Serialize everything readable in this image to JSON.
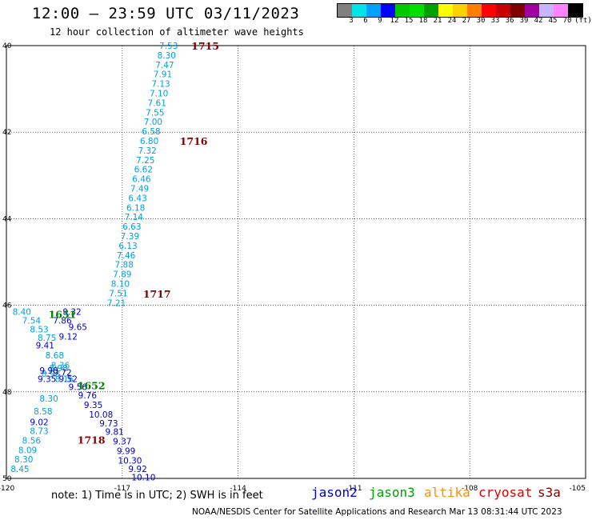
{
  "header": {
    "title": "12:00 – 23:59 UTC 03/11/2023",
    "subtitle": "12 hour collection of altimeter wave heights"
  },
  "color_scale": {
    "labels": [
      "3",
      "6",
      "9",
      "12",
      "15",
      "18",
      "21",
      "24",
      "27",
      "30",
      "33",
      "36",
      "39",
      "42",
      "45",
      "70"
    ],
    "unit": "(ft)",
    "colors": [
      "#808080",
      "#00e5e5",
      "#00a0ff",
      "#0000ff",
      "#00c800",
      "#00e000",
      "#00a000",
      "#ffff00",
      "#ffd000",
      "#ff8000",
      "#ff0000",
      "#c80000",
      "#800000",
      "#a000a0",
      "#c8b4ff",
      "#ff82ff",
      "#000000"
    ]
  },
  "map": {
    "lat_ticks": [
      "40",
      "42",
      "44",
      "46",
      "48",
      "50"
    ],
    "lon_ticks": [
      "-120",
      "-117",
      "-114",
      "-111",
      "-108",
      "-105"
    ],
    "lon_range": [
      -120,
      -105
    ],
    "lat_range": [
      -40,
      -50
    ]
  },
  "chart_data": {
    "type": "scatter",
    "x_axis": "longitude",
    "y_axis": "latitude",
    "tracks": [
      {
        "satellite": "cryosat",
        "color": "#00a0e0",
        "points": [
          {
            "lon": -115.8,
            "lat": -40.0,
            "v": "7.53"
          },
          {
            "lon": -115.85,
            "lat": -40.22,
            "v": "8.30"
          },
          {
            "lon": -115.9,
            "lat": -40.44,
            "v": "7.47"
          },
          {
            "lon": -115.95,
            "lat": -40.66,
            "v": "7.91"
          },
          {
            "lon": -116.0,
            "lat": -40.88,
            "v": "7.13"
          },
          {
            "lon": -116.05,
            "lat": -41.1,
            "v": "7.10"
          },
          {
            "lon": -116.1,
            "lat": -41.32,
            "v": "7.61"
          },
          {
            "lon": -116.15,
            "lat": -41.54,
            "v": "7.55"
          },
          {
            "lon": -116.2,
            "lat": -41.76,
            "v": "7.00"
          },
          {
            "lon": -116.25,
            "lat": -41.98,
            "v": "6.58"
          },
          {
            "lon": -116.3,
            "lat": -42.2,
            "v": "6.80"
          },
          {
            "lon": -116.35,
            "lat": -42.42,
            "v": "7.32"
          },
          {
            "lon": -116.4,
            "lat": -42.64,
            "v": "7.25"
          },
          {
            "lon": -116.45,
            "lat": -42.86,
            "v": "6.62"
          },
          {
            "lon": -116.5,
            "lat": -43.08,
            "v": "6.46"
          },
          {
            "lon": -116.55,
            "lat": -43.3,
            "v": "7.49"
          },
          {
            "lon": -116.6,
            "lat": -43.52,
            "v": "6.43"
          },
          {
            "lon": -116.65,
            "lat": -43.74,
            "v": "6.18"
          },
          {
            "lon": -116.7,
            "lat": -43.96,
            "v": "7.14"
          },
          {
            "lon": -116.75,
            "lat": -44.18,
            "v": "6.63"
          },
          {
            "lon": -116.8,
            "lat": -44.4,
            "v": "7.39"
          },
          {
            "lon": -116.85,
            "lat": -44.62,
            "v": "6.13"
          },
          {
            "lon": -116.9,
            "lat": -44.84,
            "v": "7.46"
          },
          {
            "lon": -116.95,
            "lat": -45.06,
            "v": "7.88"
          },
          {
            "lon": -117.0,
            "lat": -45.28,
            "v": "7.89"
          },
          {
            "lon": -117.05,
            "lat": -45.5,
            "v": "8.10"
          },
          {
            "lon": -117.1,
            "lat": -45.72,
            "v": "7.51"
          },
          {
            "lon": -117.15,
            "lat": -45.94,
            "v": "7.21"
          }
        ]
      },
      {
        "satellite": "jason3",
        "color": "#00a0e0",
        "points": [
          {
            "lon": -119.6,
            "lat": -46.15,
            "v": "8.40"
          },
          {
            "lon": -119.35,
            "lat": -46.35,
            "v": "7.54"
          },
          {
            "lon": -119.15,
            "lat": -46.55,
            "v": "8.53"
          },
          {
            "lon": -118.95,
            "lat": -46.75,
            "v": "8.75"
          },
          {
            "lon": -118.75,
            "lat": -47.15,
            "v": "8.68"
          },
          {
            "lon": -118.6,
            "lat": -47.38,
            "v": "8.36"
          },
          {
            "lon": -118.85,
            "lat": -47.58,
            "v": "8.93"
          },
          {
            "lon": -118.65,
            "lat": -47.45,
            "v": "8.98"
          },
          {
            "lon": -118.5,
            "lat": -47.7,
            "v": "8.16"
          },
          {
            "lon": -118.9,
            "lat": -48.15,
            "v": "8.30"
          },
          {
            "lon": -119.05,
            "lat": -48.45,
            "v": "8.58"
          },
          {
            "lon": -119.15,
            "lat": -48.9,
            "v": "8.73"
          },
          {
            "lon": -119.35,
            "lat": -49.12,
            "v": "8.56"
          },
          {
            "lon": -119.45,
            "lat": -49.34,
            "v": "8.09"
          },
          {
            "lon": -119.55,
            "lat": -49.56,
            "v": "8.30"
          },
          {
            "lon": -119.65,
            "lat": -49.78,
            "v": "8.45"
          }
        ]
      },
      {
        "satellite": "jason2",
        "color": "#0000c8",
        "points": [
          {
            "lon": -118.3,
            "lat": -46.15,
            "v": "9.32"
          },
          {
            "lon": -118.55,
            "lat": -46.35,
            "v": "7.86"
          },
          {
            "lon": -118.15,
            "lat": -46.5,
            "v": "9.65"
          },
          {
            "lon": -118.4,
            "lat": -46.72,
            "v": "9.12"
          },
          {
            "lon": -119.0,
            "lat": -46.92,
            "v": "9.41"
          },
          {
            "lon": -118.9,
            "lat": -47.5,
            "v": "9.90"
          },
          {
            "lon": -118.55,
            "lat": -47.55,
            "v": "9.72"
          },
          {
            "lon": -118.95,
            "lat": -47.7,
            "v": "9.35"
          },
          {
            "lon": -118.4,
            "lat": -47.7,
            "v": "9.52"
          },
          {
            "lon": -118.15,
            "lat": -47.88,
            "v": "9.56"
          },
          {
            "lon": -117.9,
            "lat": -48.08,
            "v": "9.76"
          },
          {
            "lon": -117.75,
            "lat": -48.3,
            "v": "9.35"
          },
          {
            "lon": -117.55,
            "lat": -48.52,
            "v": "10.08"
          },
          {
            "lon": -117.35,
            "lat": -48.72,
            "v": "9.73"
          },
          {
            "lon": -117.2,
            "lat": -48.92,
            "v": "9.81"
          },
          {
            "lon": -117.0,
            "lat": -49.14,
            "v": "9.37"
          },
          {
            "lon": -116.9,
            "lat": -49.36,
            "v": "9.99"
          },
          {
            "lon": -116.8,
            "lat": -49.58,
            "v": "10.30"
          },
          {
            "lon": -116.6,
            "lat": -49.78,
            "v": "9.92"
          },
          {
            "lon": -116.45,
            "lat": -49.97,
            "v": "10.10"
          },
          {
            "lon": -119.15,
            "lat": -48.7,
            "v": "9.02"
          }
        ]
      }
    ],
    "time_markers": [
      {
        "lon": -114.85,
        "lat": -40.0,
        "t": "1715",
        "color": "#800000"
      },
      {
        "lon": -115.15,
        "lat": -42.2,
        "t": "1716",
        "color": "#800000"
      },
      {
        "lon": -116.1,
        "lat": -45.73,
        "t": "1717",
        "color": "#800000"
      },
      {
        "lon": -118.55,
        "lat": -46.2,
        "t": "1651",
        "color": "#008000"
      },
      {
        "lon": -117.8,
        "lat": -47.85,
        "t": "1652",
        "color": "#008000"
      },
      {
        "lon": -117.8,
        "lat": -49.1,
        "t": "1718",
        "color": "#800000"
      }
    ]
  },
  "note": "note:  1) Time is in UTC; 2) SWH is in feet",
  "legend": [
    {
      "name": "jason2",
      "color": "#0000c8"
    },
    {
      "name": "jason3",
      "color": "#00a000"
    },
    {
      "name": "altika",
      "color": "#ff9000"
    },
    {
      "name": "cryosat",
      "color": "#e00000"
    },
    {
      "name": "s3a",
      "color": "#800000"
    }
  ],
  "footer": "NOAA/NESDIS Center for Satellite Applications and Research    Mar 13 08:31:44 UTC 2023"
}
